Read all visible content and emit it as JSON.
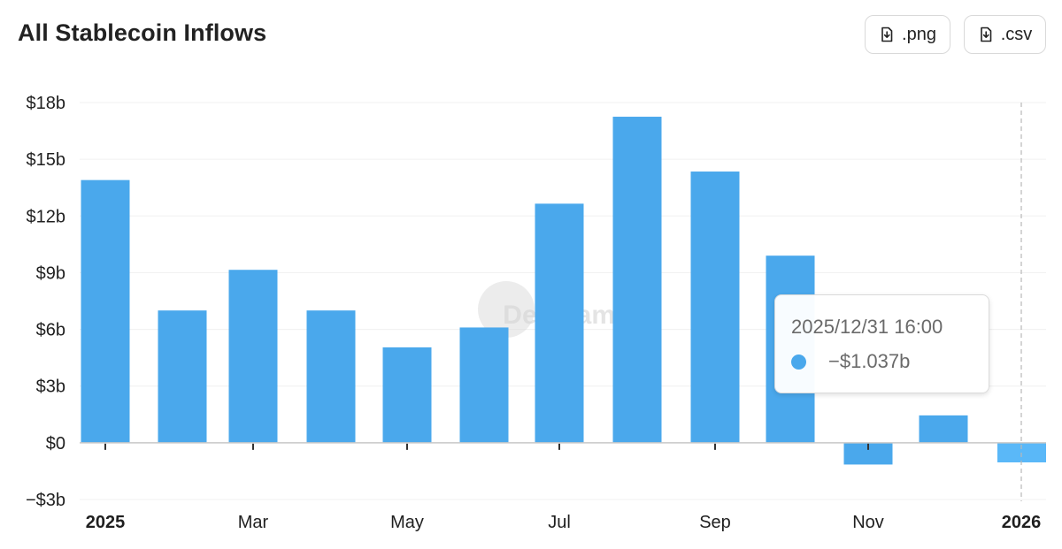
{
  "page": {
    "title": "All Stablecoin Inflows",
    "buttons": [
      {
        "label": ".png",
        "icon": "download-icon"
      },
      {
        "label": ".csv",
        "icon": "download-icon"
      }
    ],
    "watermark": "DefiLlama"
  },
  "tooltip": {
    "date": "2025/12/31 16:00",
    "value": "−$1.037b",
    "color": "#4aa8ec"
  },
  "chart_data": {
    "type": "bar",
    "title": "All Stablecoin Inflows",
    "categories": [
      "2025-01",
      "2025-02",
      "2025-03",
      "2025-04",
      "2025-05",
      "2025-06",
      "2025-07",
      "2025-08",
      "2025-09",
      "2025-10",
      "2025-11",
      "2025-12",
      "2025-12-31"
    ],
    "series": [
      {
        "values": [
          13.9,
          7.0,
          9.15,
          7.0,
          5.05,
          6.1,
          12.65,
          17.25,
          14.35,
          9.9,
          -1.15,
          1.45,
          -1.037
        ]
      }
    ],
    "x_tick_labels": [
      "2025",
      "Mar",
      "May",
      "Jul",
      "Sep",
      "Nov",
      "2026"
    ],
    "x_tick_bold": [
      "2025",
      "2026"
    ],
    "y_tick_values": [
      -3,
      0,
      3,
      6,
      9,
      12,
      15,
      18
    ],
    "y_tick_labels": [
      "−$3b",
      "$0",
      "$3b",
      "$6b",
      "$9b",
      "$12b",
      "$15b",
      "$18b"
    ],
    "ylim": [
      -3,
      18
    ],
    "unit": "b",
    "colors": {
      "bar": "#4aa8ec",
      "bar_highlight": "#5ab8f8",
      "grid": "#f0f0f0",
      "axis": "#c8c8c8"
    },
    "grid": true,
    "highlighted_index": 12
  }
}
